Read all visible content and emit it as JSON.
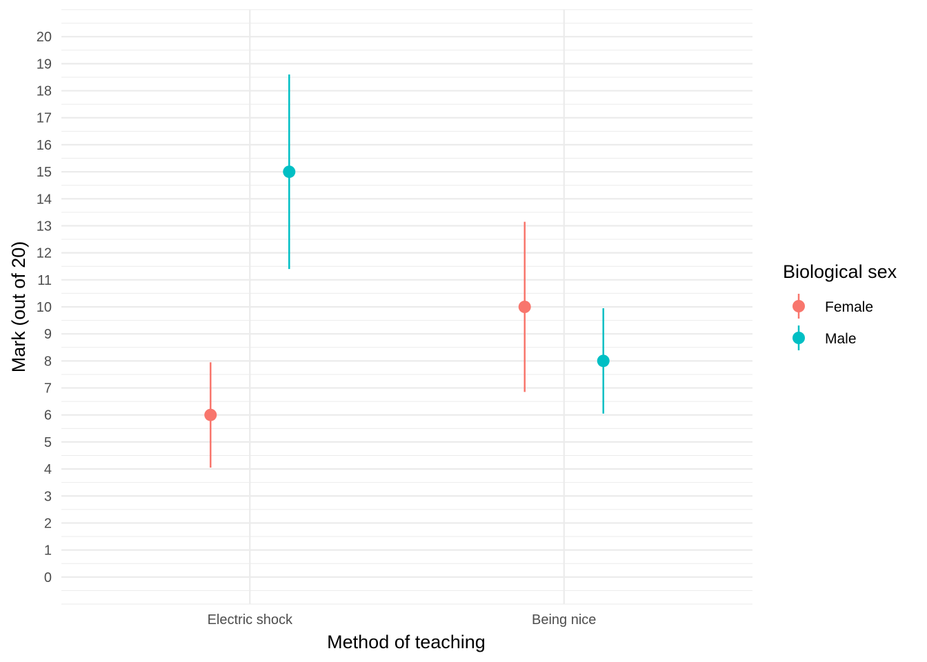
{
  "chart_data": {
    "type": "scatter",
    "subtype": "point-range",
    "title": "",
    "xlabel": "Method of teaching",
    "ylabel": "Mark (out of 20)",
    "categories": [
      "Electric shock",
      "Being nice"
    ],
    "ylim": [
      -1,
      21
    ],
    "yticks": [
      0,
      1,
      2,
      3,
      4,
      5,
      6,
      7,
      8,
      9,
      10,
      11,
      12,
      13,
      14,
      15,
      16,
      17,
      18,
      19,
      20
    ],
    "grid": true,
    "legend": {
      "title": "Biological sex",
      "position": "right"
    },
    "series": [
      {
        "name": "Female",
        "color": "#F8766D",
        "points": [
          {
            "category": "Electric shock",
            "mean": 6,
            "lower": 4.05,
            "upper": 7.95
          },
          {
            "category": "Being nice",
            "mean": 10,
            "lower": 6.85,
            "upper": 13.15
          }
        ]
      },
      {
        "name": "Male",
        "color": "#00BFC4",
        "points": [
          {
            "category": "Electric shock",
            "mean": 15,
            "lower": 11.4,
            "upper": 18.6
          },
          {
            "category": "Being nice",
            "mean": 8,
            "lower": 6.05,
            "upper": 9.95
          }
        ]
      }
    ]
  }
}
